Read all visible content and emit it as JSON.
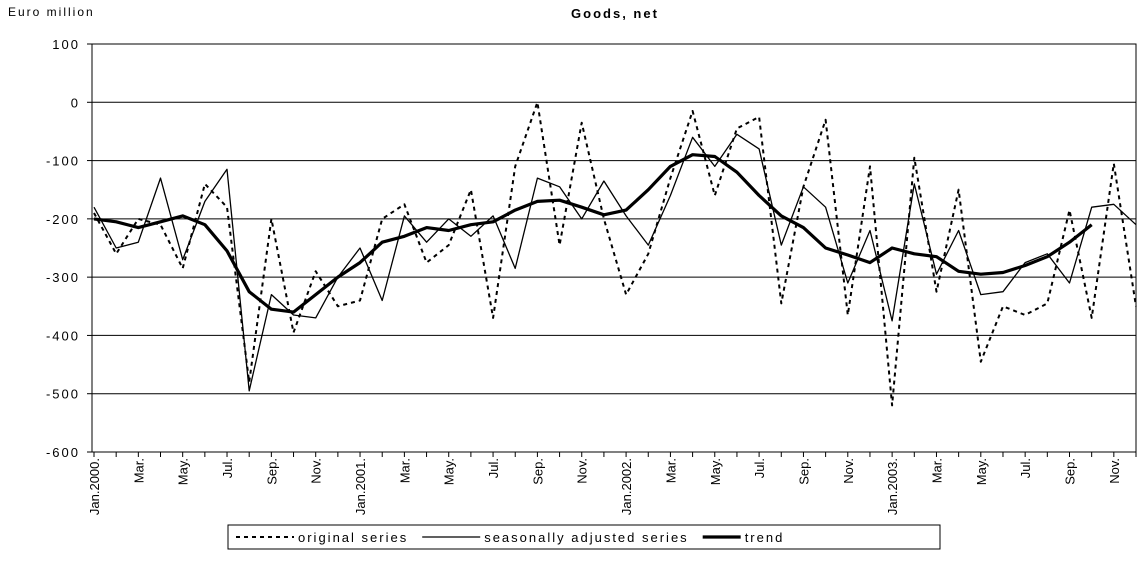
{
  "chart_data": {
    "type": "line",
    "title": "Goods, net",
    "y_axis_label": "Euro million",
    "categories": [
      "Jan.2000.",
      null,
      "Mar.",
      null,
      "May.",
      null,
      "Jul.",
      null,
      "Sep.",
      null,
      "Nov.",
      null,
      "Jan.2001.",
      null,
      "Mar.",
      null,
      "May.",
      null,
      "Jul.",
      null,
      "Sep.",
      null,
      "Nov.",
      null,
      "Jan.2002.",
      null,
      "Mar.",
      null,
      "May.",
      null,
      "Jul.",
      null,
      "Sep.",
      null,
      "Nov.",
      null,
      "Jan.2003.",
      null,
      "Mar.",
      null,
      "May.",
      null,
      "Jul.",
      null,
      "Sep.",
      null,
      "Nov.",
      null
    ],
    "series": [
      {
        "name": "original series",
        "color": "#000000",
        "dash": "dotted",
        "width": 2,
        "values": [
          -190,
          -260,
          -200,
          -210,
          -285,
          -140,
          -180,
          -480,
          -200,
          -395,
          -290,
          -350,
          -340,
          -200,
          -175,
          -275,
          -245,
          -150,
          -370,
          -110,
          0,
          -245,
          -35,
          -200,
          -330,
          -260,
          -130,
          -15,
          -160,
          -45,
          -25,
          -345,
          -145,
          -30,
          -365,
          -110,
          -520,
          -95,
          -325,
          -150,
          -445,
          -350,
          -365,
          -345,
          -185,
          -370,
          -105,
          -350
        ]
      },
      {
        "name": "seasonally adjusted series",
        "color": "#000000",
        "dash": "solid",
        "width": 1.3,
        "values": [
          -180,
          -250,
          -240,
          -130,
          -270,
          -170,
          -115,
          -495,
          -330,
          -365,
          -370,
          -300,
          -250,
          -340,
          -195,
          -240,
          -200,
          -230,
          -195,
          -285,
          -130,
          -145,
          -200,
          -135,
          -195,
          -245,
          -160,
          -60,
          -110,
          -55,
          -80,
          -245,
          -145,
          -180,
          -310,
          -220,
          -375,
          -140,
          -295,
          -220,
          -330,
          -325,
          -275,
          -260,
          -310,
          -180,
          -175,
          -210
        ]
      },
      {
        "name": "trend",
        "color": "#000000",
        "dash": "solid",
        "width": 3.2,
        "values": [
          -200,
          -205,
          -215,
          -205,
          -195,
          -210,
          -255,
          -325,
          -355,
          -360,
          -330,
          -300,
          -275,
          -240,
          -230,
          -215,
          -220,
          -210,
          -205,
          -185,
          -170,
          -168,
          -180,
          -193,
          -185,
          -150,
          -110,
          -90,
          -93,
          -120,
          -160,
          -195,
          -215,
          -250,
          -262,
          -275,
          -250,
          -260,
          -265,
          -290,
          -295,
          -292,
          -280,
          -265,
          -240,
          -210,
          null,
          null
        ]
      }
    ],
    "ylim": [
      -600,
      100
    ],
    "yticks": [
      -600,
      -500,
      -400,
      -300,
      -200,
      -100,
      0,
      100
    ],
    "grid": true,
    "legend": "bottom"
  }
}
